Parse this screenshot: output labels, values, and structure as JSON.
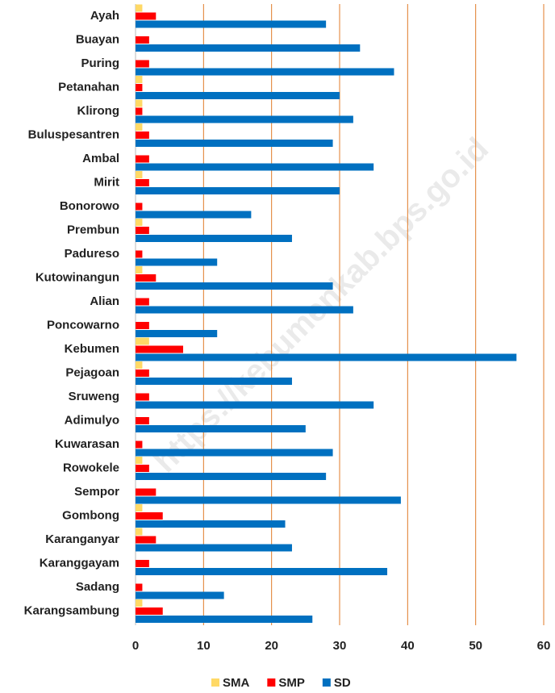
{
  "chart_data": {
    "type": "bar",
    "orientation": "horizontal",
    "watermark": "https://kebumenkab.bps.go.id",
    "categories": [
      "Ayah",
      "Buayan",
      "Puring",
      "Petanahan",
      "Klirong",
      "Buluspesantren",
      "Ambal",
      "Mirit",
      "Bonorowo",
      "Prembun",
      "Padureso",
      "Kutowinangun",
      "Alian",
      "Poncowarno",
      "Kebumen",
      "Pejagoan",
      "Sruweng",
      "Adimulyo",
      "Kuwarasan",
      "Rowokele",
      "Sempor",
      "Gombong",
      "Karanganyar",
      "Karanggayam",
      "Sadang",
      "Karangsambung"
    ],
    "series": [
      {
        "name": "SMA",
        "color": "#ffd966",
        "values": [
          1,
          0,
          0,
          1,
          1,
          1,
          0,
          1,
          0,
          1,
          0,
          1,
          0,
          0,
          2,
          1,
          0,
          0,
          0,
          1,
          0,
          1,
          1,
          0,
          0,
          1
        ]
      },
      {
        "name": "SMP",
        "color": "#ff0000",
        "values": [
          3,
          2,
          2,
          1,
          1,
          2,
          2,
          2,
          1,
          2,
          1,
          3,
          2,
          2,
          7,
          2,
          2,
          2,
          1,
          2,
          3,
          4,
          3,
          2,
          1,
          4
        ]
      },
      {
        "name": "SD",
        "color": "#0070c0",
        "values": [
          28,
          33,
          38,
          30,
          32,
          29,
          35,
          30,
          17,
          23,
          12,
          29,
          32,
          12,
          56,
          23,
          35,
          25,
          29,
          28,
          39,
          22,
          23,
          37,
          13,
          26
        ]
      }
    ],
    "xlim": [
      0,
      60
    ],
    "xticks": [
      0,
      10,
      20,
      30,
      40,
      50,
      60
    ],
    "grid": true,
    "grid_color": "#e07b28",
    "legend": "bottom"
  }
}
